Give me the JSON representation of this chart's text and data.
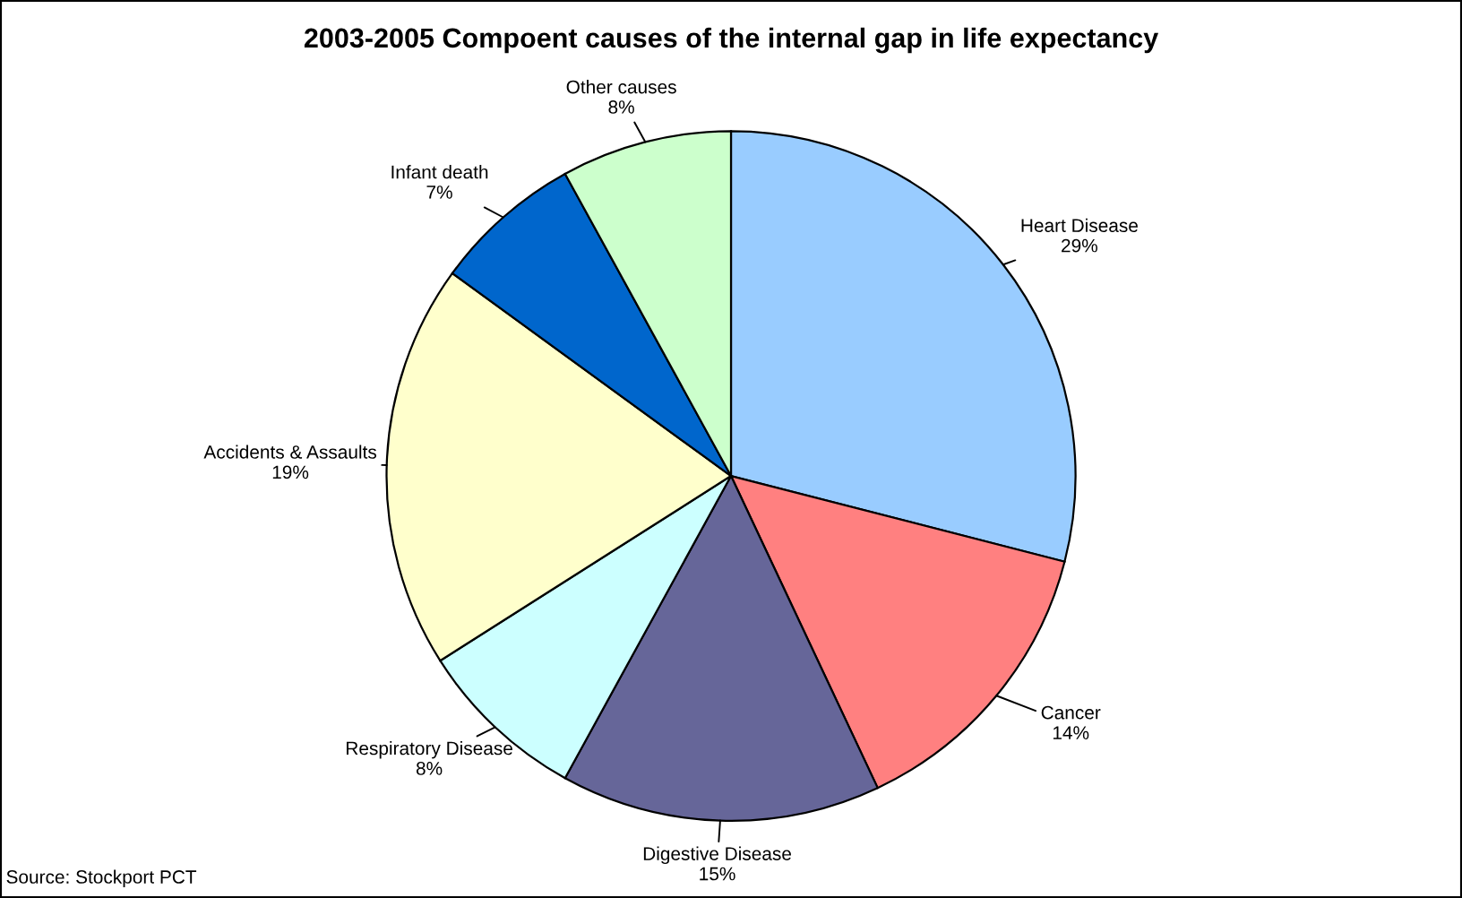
{
  "chart_data": {
    "type": "pie",
    "title": "2003-2005 Compoent causes of the internal gap in life expectancy",
    "categories": [
      "Heart Disease",
      "Cancer",
      "Digestive Disease",
      "Respiratory Disease",
      "Accidents & Assaults",
      "Infant death",
      "Other causes"
    ],
    "values": [
      29,
      14,
      15,
      8,
      19,
      7,
      8
    ],
    "value_labels": [
      "29%",
      "14%",
      "15%",
      "8%",
      "19%",
      "7%",
      "8%"
    ],
    "colors": [
      "#99ccff",
      "#ff8080",
      "#666699",
      "#ccffff",
      "#ffffcc",
      "#0066cc",
      "#ccffcc"
    ],
    "annotations": [
      "Source: Stockport PCT"
    ]
  }
}
